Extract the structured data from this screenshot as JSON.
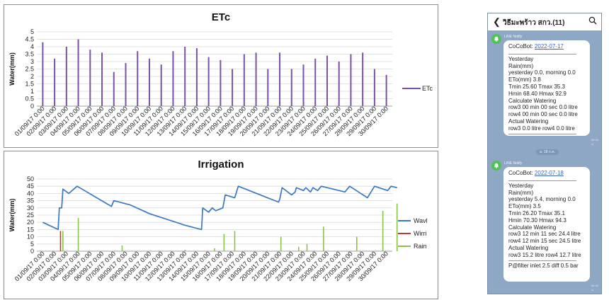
{
  "chart_data": [
    {
      "type": "bar",
      "title": "ETc",
      "xlabel": "",
      "ylabel": "Water(mm)",
      "ylim": [
        0,
        5
      ],
      "yticks": [
        "0",
        "0.5",
        "1",
        "1.5",
        "2",
        "2.5",
        "3",
        "3.5",
        "4",
        "4.5",
        "5"
      ],
      "legend": [
        "ETc"
      ],
      "legend_position": "right",
      "categories": [
        "01/09/17 0:00",
        "02/09/17 0:00",
        "03/09/17 0:00",
        "04/09/17 0:00",
        "05/09/17 0:00",
        "06/09/17 0:00",
        "07/09/17 0:00",
        "08/09/17 0:00",
        "09/09/17 0:00",
        "10/09/17 0:00",
        "11/09/17 0:00",
        "12/09/17 0:00",
        "13/09/17 0:00",
        "14/09/17 0:00",
        "15/09/17 0:00",
        "16/09/17 0:00",
        "17/09/17 0:00",
        "18/09/17 0:00",
        "19/09/17 0:00",
        "20/09/17 0:00",
        "21/09/17 0:00",
        "22/09/17 0:00",
        "23/09/17 0:00",
        "24/09/17 0:00",
        "25/09/17 0:00",
        "26/09/17 0:00",
        "27/09/17 0:00",
        "28/09/17 0:00",
        "29/09/17 0:00",
        "30/09/17 0:00"
      ],
      "values": [
        4.3,
        3.2,
        4.0,
        4.5,
        3.8,
        3.6,
        2.3,
        2.9,
        3.7,
        3.2,
        2.8,
        3.7,
        4.0,
        3.9,
        3.3,
        3.1,
        2.5,
        3.5,
        3.6,
        2.5,
        3.6,
        2.5,
        2.8,
        3.2,
        3.4,
        3.0,
        3.5,
        3.6,
        2.5,
        2.1
      ]
    },
    {
      "type": "line",
      "title": "Irrigation",
      "xlabel": "",
      "ylabel": "Water(mm)",
      "ylim": [
        0,
        50
      ],
      "yticks": [
        "0",
        "5",
        "10",
        "15",
        "20",
        "25",
        "30",
        "35",
        "40",
        "45",
        "50"
      ],
      "legend_position": "right",
      "categories": [
        "01/09/17 0:00",
        "02/09/17 0:00",
        "03/09/17 0:00",
        "04/09/17 0:00",
        "05/09/17 0:00",
        "06/09/17 0:00",
        "07/09/17 0:00",
        "08/09/17 0:00",
        "09/09/17 0:00",
        "10/09/17 0:00",
        "11/09/17 0:00",
        "12/09/17 0:00",
        "13/09/17 0:00",
        "14/09/17 0:00",
        "15/09/17 0:00",
        "16/09/17 0:00",
        "17/09/17 0:00",
        "18/09/17 0:00",
        "19/09/17 0:00",
        "20/09/17 0:00",
        "21/09/17 0:00",
        "22/09/17 0:00",
        "23/09/17 0:00",
        "24/09/17 0:00",
        "25/09/17 0:00",
        "26/09/17 0:00",
        "27/09/17 0:00",
        "28/09/17 0:00",
        "29/09/17 0:00",
        "30/09/17 0:00"
      ],
      "series": [
        {
          "name": "Wavl",
          "color": "#3a78c4",
          "points": [
            [
              0,
              20
            ],
            [
              1.3,
              15
            ],
            [
              1.4,
              30
            ],
            [
              1.6,
              30
            ],
            [
              1.7,
              43
            ],
            [
              2.2,
              40
            ],
            [
              2.9,
              45
            ],
            [
              5.8,
              31
            ],
            [
              6.0,
              35
            ],
            [
              7.4,
              32
            ],
            [
              9.0,
              26
            ],
            [
              12.0,
              18
            ],
            [
              13.4,
              15
            ],
            [
              13.5,
              30
            ],
            [
              14.0,
              27
            ],
            [
              14.3,
              30
            ],
            [
              14.6,
              28
            ],
            [
              15.2,
              30
            ],
            [
              15.4,
              39
            ],
            [
              16.2,
              37
            ],
            [
              16.5,
              45
            ],
            [
              19.9,
              34
            ],
            [
              20.0,
              36
            ],
            [
              20.2,
              44
            ],
            [
              21.0,
              39
            ],
            [
              21.3,
              41
            ],
            [
              21.4,
              44
            ],
            [
              22.0,
              42
            ],
            [
              22.2,
              44
            ],
            [
              22.6,
              41
            ],
            [
              22.8,
              44
            ],
            [
              23.2,
              42
            ],
            [
              23.5,
              45
            ],
            [
              25.5,
              41
            ],
            [
              25.9,
              45
            ],
            [
              27.4,
              37
            ],
            [
              28.0,
              45
            ],
            [
              29.1,
              42
            ],
            [
              29.4,
              45
            ],
            [
              29.9,
              44
            ]
          ]
        },
        {
          "name": "Wirri",
          "color": "#c0392b",
          "points": [
            [
              1.5,
              0
            ],
            [
              1.5,
              14
            ]
          ]
        },
        {
          "name": "Rain",
          "color": "#8bc34a",
          "bars": [
            [
              1.7,
              14
            ],
            [
              3.0,
              23
            ],
            [
              6.7,
              4
            ],
            [
              12.0,
              1
            ],
            [
              14.5,
              2
            ],
            [
              15.3,
              12
            ],
            [
              16.2,
              14
            ],
            [
              20.1,
              10
            ],
            [
              21.6,
              3
            ],
            [
              22.3,
              5
            ],
            [
              23.7,
              17
            ],
            [
              26.5,
              10
            ],
            [
              28.7,
              28
            ],
            [
              29.9,
              33
            ]
          ]
        }
      ]
    }
  ],
  "phone": {
    "back_icon": "chevron-left-icon",
    "title": "วิธีมะพร้าว สกว.(11)",
    "search_icon": "search-icon",
    "messages": [
      {
        "sender": "LINE Notify",
        "bot": "CoCoBot:",
        "date": "2022-07-17",
        "lines": [
          "Yesterday",
          "Rain(mm)",
          "yesterday 0.0, morning 0.0",
          "ETo(mm) 3.8",
          "Tmin 25.60 Tmax 35.3",
          "Hmin 68.40 Hmax 92.9",
          "Calculate Watering",
          "row3 00 min 00 sec  0.0 litre",
          "row4 00 min 00 sec  0.0 litre",
          "Actual Watering",
          "row3 0.0 litre row4 0.0 litre"
        ],
        "time": "06:33 น."
      },
      {
        "sender": "LINE Notify",
        "bot": "CoCoBot:",
        "date": "2022-07-18",
        "lines": [
          "Yesterday",
          "Rain(mm)",
          "yesterday 5.4, morning 0.0",
          "ETo(mm) 3.5",
          "Tmin 26.20 Tmax 35.1",
          "Hmin 70.30 Hmax 94.3",
          "Calculate Watering",
          "row3 12 min 11 sec  24.4 litre",
          "row4 12 min 15 sec  24.5 litre",
          "Actual Watering",
          "row3 15.2 litre row4 12.7 litre"
        ],
        "footer": "P@filter inlet 2.5 diff 0.5 bar",
        "time": "06:30 น."
      }
    ],
    "date_pill": "อ. 18 ก.ค."
  }
}
